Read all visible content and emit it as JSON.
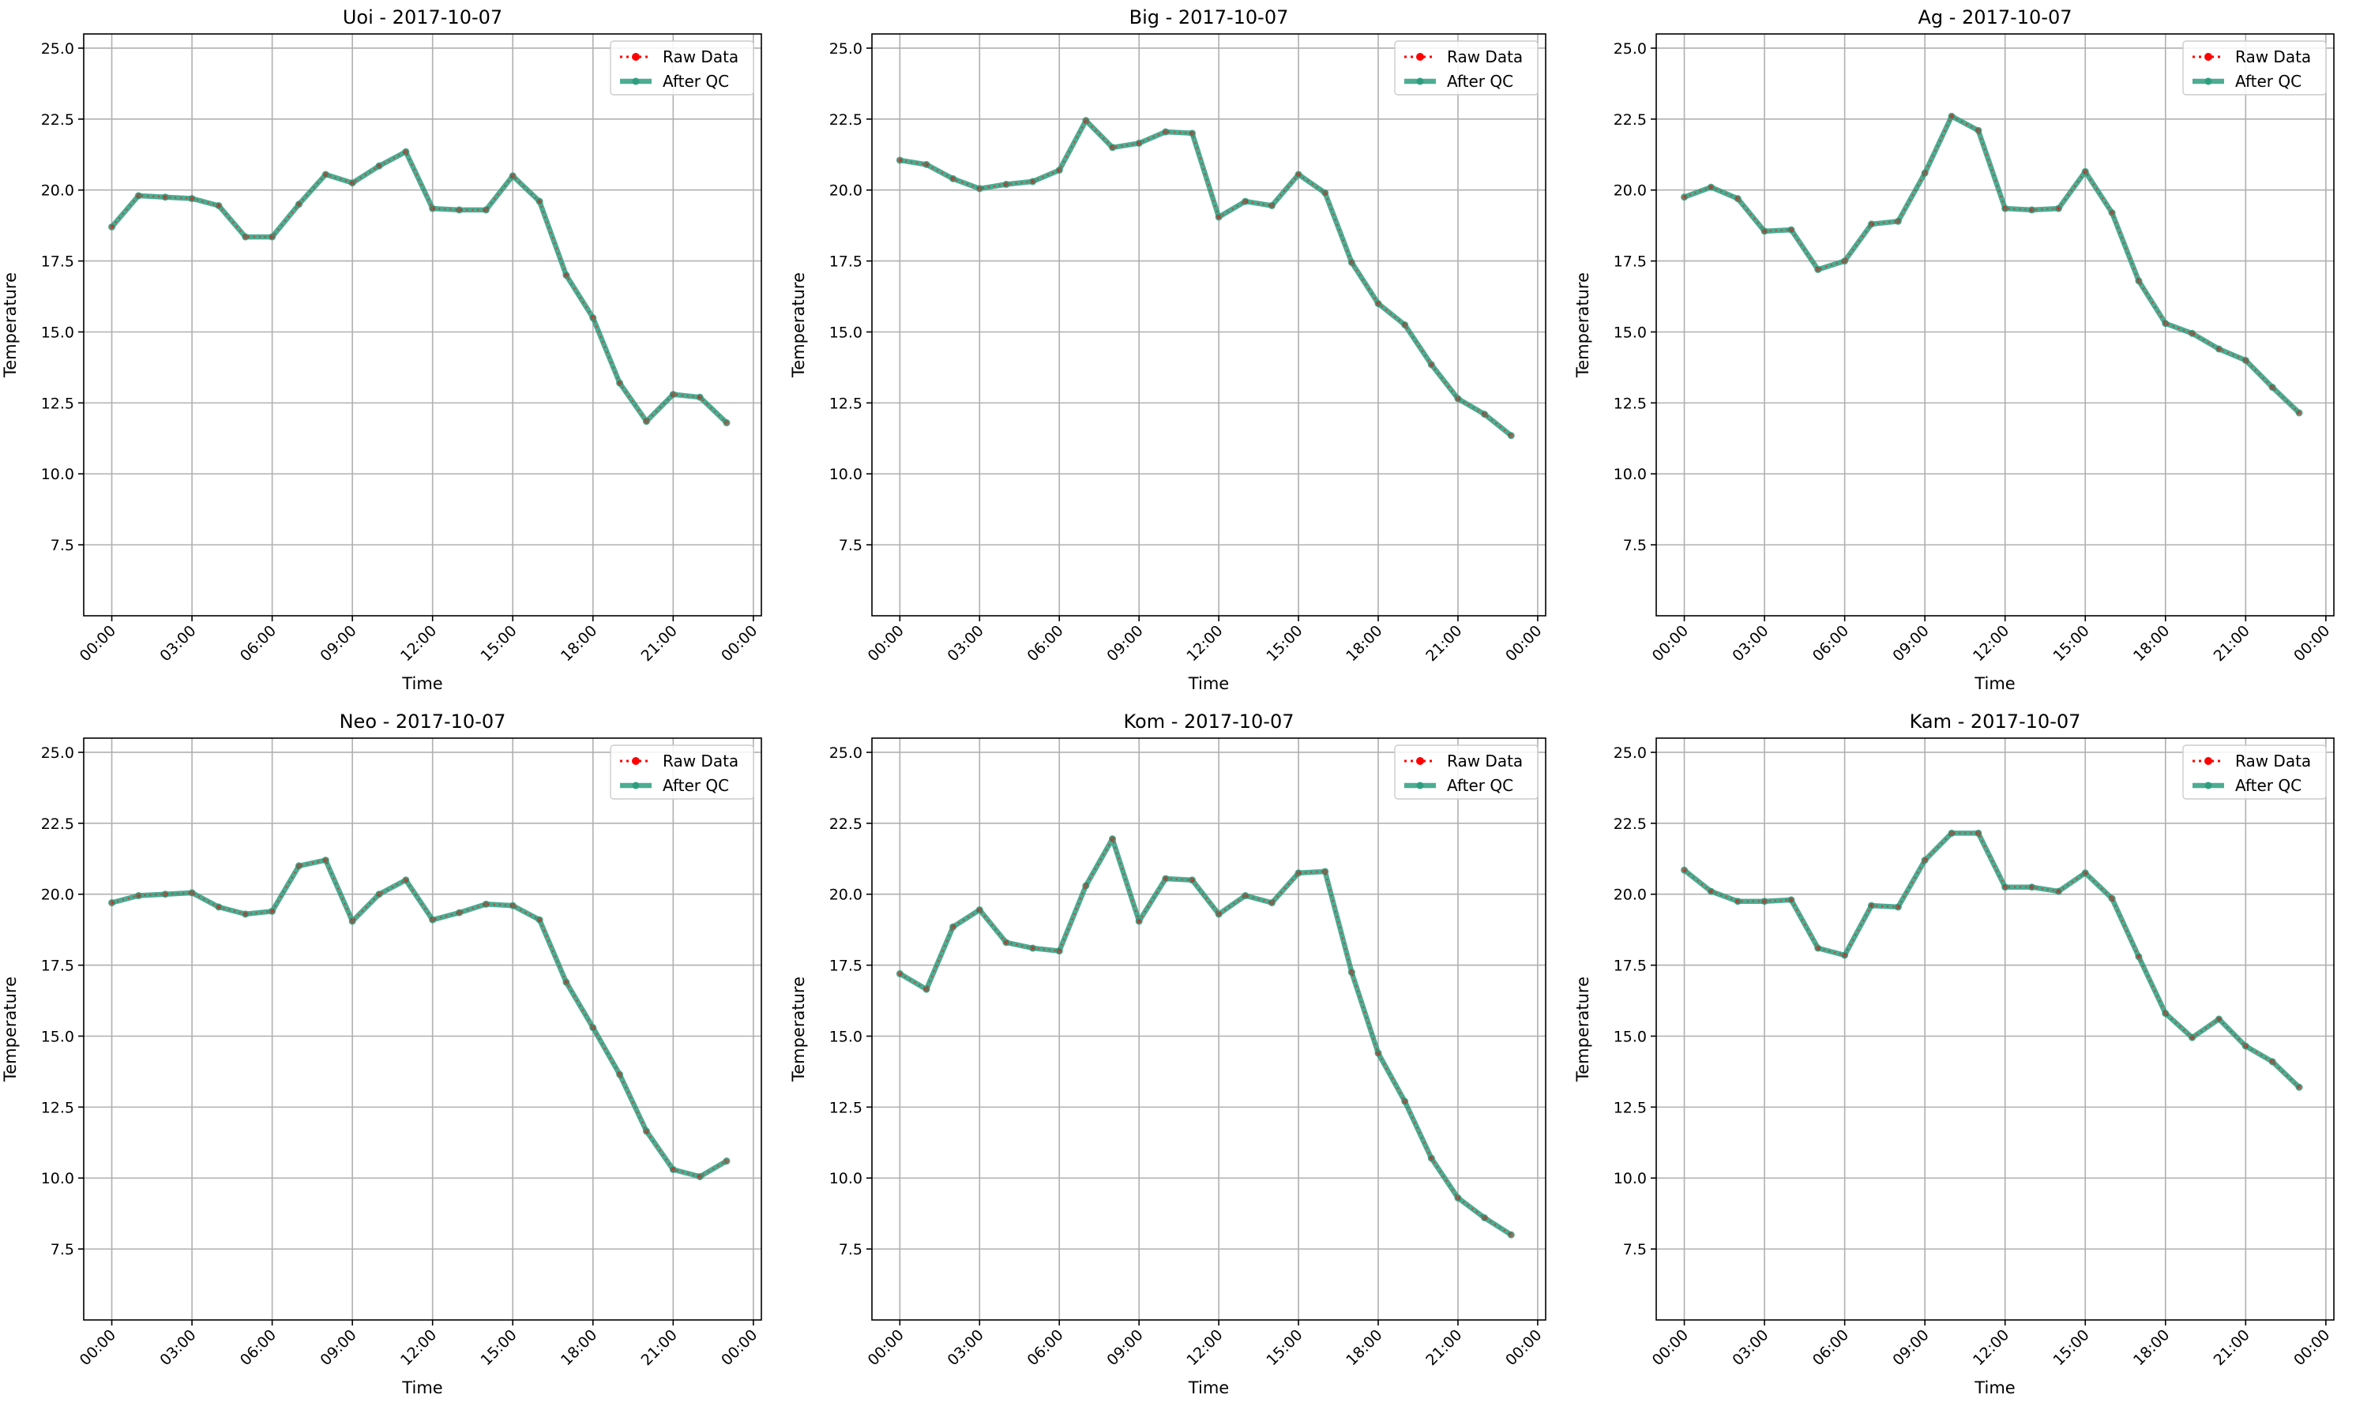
{
  "chart_data": [
    {
      "type": "line",
      "title": "Uoi - 2017-10-07",
      "xlabel": "Time",
      "ylabel": "Temperature",
      "ylim": [
        5.0,
        25.5
      ],
      "yticks": [
        "7.5",
        "10.0",
        "12.5",
        "15.0",
        "17.5",
        "20.0",
        "22.5",
        "25.0"
      ],
      "xticks": [
        "00:00",
        "03:00",
        "06:00",
        "09:00",
        "12:00",
        "15:00",
        "18:00",
        "21:00",
        "00:00"
      ],
      "x_hours": [
        0,
        1,
        2,
        3,
        4,
        5,
        6,
        7,
        8,
        9,
        10,
        11,
        12,
        13,
        14,
        15,
        16,
        17,
        18,
        19,
        20,
        21,
        22,
        23
      ],
      "grid": true,
      "legend": "top-right",
      "series": [
        {
          "name": "Raw Data",
          "color": "#ff0000",
          "style": "dotted",
          "values": [
            18.7,
            19.8,
            19.75,
            19.7,
            19.45,
            18.35,
            18.35,
            19.5,
            20.55,
            20.25,
            20.85,
            21.35,
            19.35,
            19.3,
            19.3,
            20.5,
            19.6,
            17.0,
            15.5,
            13.2,
            11.85,
            12.8,
            12.7,
            11.8
          ]
        },
        {
          "name": "After QC",
          "color": "#2e9e7f",
          "style": "solid",
          "values": [
            18.7,
            19.8,
            19.75,
            19.7,
            19.45,
            18.35,
            18.35,
            19.5,
            20.55,
            20.25,
            20.85,
            21.35,
            19.35,
            19.3,
            19.3,
            20.5,
            19.6,
            17.0,
            15.5,
            13.2,
            11.85,
            12.8,
            12.7,
            11.8
          ]
        }
      ]
    },
    {
      "type": "line",
      "title": "Big - 2017-10-07",
      "xlabel": "Time",
      "ylabel": "Temperature",
      "ylim": [
        5.0,
        25.5
      ],
      "yticks": [
        "7.5",
        "10.0",
        "12.5",
        "15.0",
        "17.5",
        "20.0",
        "22.5",
        "25.0"
      ],
      "xticks": [
        "00:00",
        "03:00",
        "06:00",
        "09:00",
        "12:00",
        "15:00",
        "18:00",
        "21:00",
        "00:00"
      ],
      "x_hours": [
        0,
        1,
        2,
        3,
        4,
        5,
        6,
        7,
        8,
        9,
        10,
        11,
        12,
        13,
        14,
        15,
        16,
        17,
        18,
        19,
        20,
        21,
        22,
        23
      ],
      "grid": true,
      "legend": "top-right",
      "series": [
        {
          "name": "Raw Data",
          "color": "#ff0000",
          "style": "dotted",
          "values": [
            21.05,
            20.9,
            20.4,
            20.05,
            20.2,
            20.3,
            20.7,
            22.45,
            21.5,
            21.65,
            22.05,
            22.0,
            19.05,
            19.6,
            19.45,
            20.55,
            19.9,
            17.45,
            16.0,
            15.25,
            13.85,
            12.65,
            12.1,
            11.35
          ]
        },
        {
          "name": "After QC",
          "color": "#2e9e7f",
          "style": "solid",
          "values": [
            21.05,
            20.9,
            20.4,
            20.05,
            20.2,
            20.3,
            20.7,
            22.45,
            21.5,
            21.65,
            22.05,
            22.0,
            19.05,
            19.6,
            19.45,
            20.55,
            19.9,
            17.45,
            16.0,
            15.25,
            13.85,
            12.65,
            12.1,
            11.35
          ]
        }
      ]
    },
    {
      "type": "line",
      "title": "Ag - 2017-10-07",
      "xlabel": "Time",
      "ylabel": "Temperature",
      "ylim": [
        5.0,
        25.5
      ],
      "yticks": [
        "7.5",
        "10.0",
        "12.5",
        "15.0",
        "17.5",
        "20.0",
        "22.5",
        "25.0"
      ],
      "xticks": [
        "00:00",
        "03:00",
        "06:00",
        "09:00",
        "12:00",
        "15:00",
        "18:00",
        "21:00",
        "00:00"
      ],
      "x_hours": [
        0,
        1,
        2,
        3,
        4,
        5,
        6,
        7,
        8,
        9,
        10,
        11,
        12,
        13,
        14,
        15,
        16,
        17,
        18,
        19,
        20,
        21,
        22,
        23
      ],
      "grid": true,
      "legend": "top-right",
      "series": [
        {
          "name": "Raw Data",
          "color": "#ff0000",
          "style": "dotted",
          "values": [
            19.75,
            20.1,
            19.7,
            18.55,
            18.6,
            17.2,
            17.5,
            18.8,
            18.9,
            20.6,
            22.6,
            22.1,
            19.35,
            19.3,
            19.35,
            20.65,
            19.2,
            16.8,
            15.3,
            14.95,
            14.4,
            14.0,
            13.05,
            12.15
          ]
        },
        {
          "name": "After QC",
          "color": "#2e9e7f",
          "style": "solid",
          "values": [
            19.75,
            20.1,
            19.7,
            18.55,
            18.6,
            17.2,
            17.5,
            18.8,
            18.9,
            20.6,
            22.6,
            22.1,
            19.35,
            19.3,
            19.35,
            20.65,
            19.2,
            16.8,
            15.3,
            14.95,
            14.4,
            14.0,
            13.05,
            12.15
          ]
        }
      ]
    },
    {
      "type": "line",
      "title": "Neo - 2017-10-07",
      "xlabel": "Time",
      "ylabel": "Temperature",
      "ylim": [
        5.0,
        25.5
      ],
      "yticks": [
        "7.5",
        "10.0",
        "12.5",
        "15.0",
        "17.5",
        "20.0",
        "22.5",
        "25.0"
      ],
      "xticks": [
        "00:00",
        "03:00",
        "06:00",
        "09:00",
        "12:00",
        "15:00",
        "18:00",
        "21:00",
        "00:00"
      ],
      "x_hours": [
        0,
        1,
        2,
        3,
        4,
        5,
        6,
        7,
        8,
        9,
        10,
        11,
        12,
        13,
        14,
        15,
        16,
        17,
        18,
        19,
        20,
        21,
        22,
        23
      ],
      "grid": true,
      "legend": "top-right",
      "series": [
        {
          "name": "Raw Data",
          "color": "#ff0000",
          "style": "dotted",
          "values": [
            19.7,
            19.95,
            20.0,
            20.05,
            19.55,
            19.3,
            19.4,
            21.0,
            21.2,
            19.05,
            20.0,
            20.5,
            19.1,
            19.35,
            19.65,
            19.6,
            19.1,
            16.9,
            15.3,
            13.65,
            11.65,
            10.3,
            10.05,
            10.6
          ]
        },
        {
          "name": "After QC",
          "color": "#2e9e7f",
          "style": "solid",
          "values": [
            19.7,
            19.95,
            20.0,
            20.05,
            19.55,
            19.3,
            19.4,
            21.0,
            21.2,
            19.05,
            20.0,
            20.5,
            19.1,
            19.35,
            19.65,
            19.6,
            19.1,
            16.9,
            15.3,
            13.65,
            11.65,
            10.3,
            10.05,
            10.6
          ]
        }
      ]
    },
    {
      "type": "line",
      "title": "Kom - 2017-10-07",
      "xlabel": "Time",
      "ylabel": "Temperature",
      "ylim": [
        5.0,
        25.5
      ],
      "yticks": [
        "7.5",
        "10.0",
        "12.5",
        "15.0",
        "17.5",
        "20.0",
        "22.5",
        "25.0"
      ],
      "xticks": [
        "00:00",
        "03:00",
        "06:00",
        "09:00",
        "12:00",
        "15:00",
        "18:00",
        "21:00",
        "00:00"
      ],
      "x_hours": [
        0,
        1,
        2,
        3,
        4,
        5,
        6,
        7,
        8,
        9,
        10,
        11,
        12,
        13,
        14,
        15,
        16,
        17,
        18,
        19,
        20,
        21,
        22,
        23
      ],
      "grid": true,
      "legend": "top-right",
      "series": [
        {
          "name": "Raw Data",
          "color": "#ff0000",
          "style": "dotted",
          "values": [
            17.2,
            16.65,
            18.85,
            19.45,
            18.3,
            18.1,
            18.0,
            20.3,
            21.95,
            19.05,
            20.55,
            20.5,
            19.3,
            19.95,
            19.7,
            20.75,
            20.8,
            17.25,
            14.4,
            12.7,
            10.7,
            9.3,
            8.6,
            8.0
          ]
        },
        {
          "name": "After QC",
          "color": "#2e9e7f",
          "style": "solid",
          "values": [
            17.2,
            16.65,
            18.85,
            19.45,
            18.3,
            18.1,
            18.0,
            20.3,
            21.95,
            19.05,
            20.55,
            20.5,
            19.3,
            19.95,
            19.7,
            20.75,
            20.8,
            17.25,
            14.4,
            12.7,
            10.7,
            9.3,
            8.6,
            8.0
          ]
        }
      ]
    },
    {
      "type": "line",
      "title": "Kam - 2017-10-07",
      "xlabel": "Time",
      "ylabel": "Temperature",
      "ylim": [
        5.0,
        25.5
      ],
      "yticks": [
        "7.5",
        "10.0",
        "12.5",
        "15.0",
        "17.5",
        "20.0",
        "22.5",
        "25.0"
      ],
      "xticks": [
        "00:00",
        "03:00",
        "06:00",
        "09:00",
        "12:00",
        "15:00",
        "18:00",
        "21:00",
        "00:00"
      ],
      "x_hours": [
        0,
        1,
        2,
        3,
        4,
        5,
        6,
        7,
        8,
        9,
        10,
        11,
        12,
        13,
        14,
        15,
        16,
        17,
        18,
        19,
        20,
        21,
        22,
        23
      ],
      "grid": true,
      "legend": "top-right",
      "series": [
        {
          "name": "Raw Data",
          "color": "#ff0000",
          "style": "dotted",
          "values": [
            20.85,
            20.1,
            19.75,
            19.75,
            19.8,
            18.1,
            17.85,
            19.6,
            19.55,
            21.2,
            22.15,
            22.15,
            20.25,
            20.25,
            20.1,
            20.75,
            19.85,
            17.8,
            15.8,
            14.95,
            15.6,
            14.65,
            14.1,
            13.2
          ]
        },
        {
          "name": "After QC",
          "color": "#2e9e7f",
          "style": "solid",
          "values": [
            20.85,
            20.1,
            19.75,
            19.75,
            19.8,
            18.1,
            17.85,
            19.6,
            19.55,
            21.2,
            22.15,
            22.15,
            20.25,
            20.25,
            20.1,
            20.75,
            19.85,
            17.8,
            15.8,
            14.95,
            15.6,
            14.65,
            14.1,
            13.2
          ]
        }
      ]
    }
  ]
}
